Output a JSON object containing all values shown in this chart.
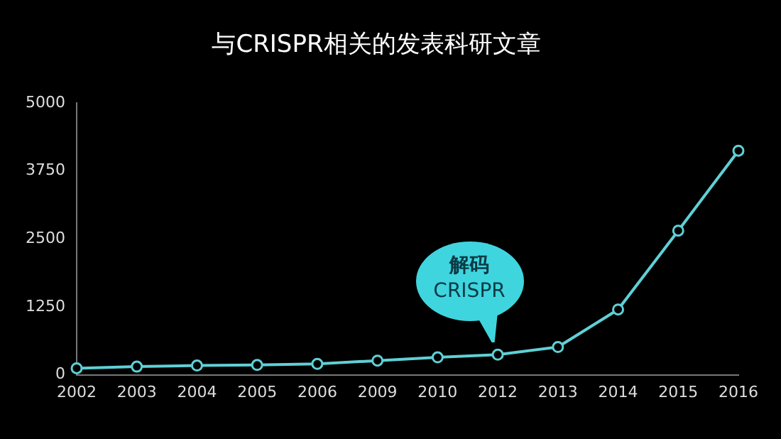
{
  "chart_data": {
    "type": "line",
    "title": "与CRISPR相关的发表科研文章",
    "categories": [
      "2002",
      "2003",
      "2004",
      "2005",
      "2006",
      "2009",
      "2010",
      "2012",
      "2013",
      "2014",
      "2015",
      "2016"
    ],
    "values": [
      120,
      150,
      170,
      180,
      200,
      260,
      320,
      370,
      510,
      1200,
      2650,
      4120
    ],
    "color": "#5fd0d6",
    "marker": "circle",
    "line_style": "solid",
    "ylim": [
      0,
      5000
    ],
    "yticks": [
      0,
      1250,
      2500,
      3750,
      5000
    ],
    "grid": false,
    "legend": false,
    "annotations": [
      {
        "text": "解码\nCRISPR",
        "x": "2012",
        "y": 370
      }
    ]
  }
}
